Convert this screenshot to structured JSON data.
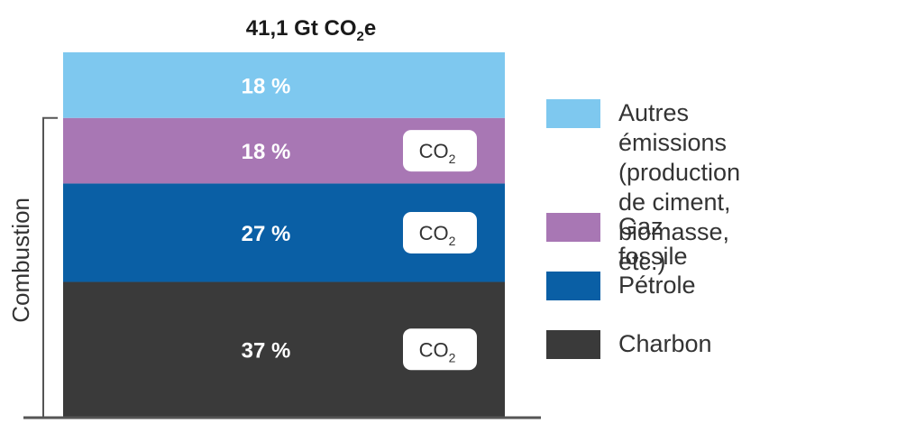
{
  "chart_data": {
    "type": "bar",
    "stacked": true,
    "title_main": "41,1 Gt CO",
    "title_sub": "2",
    "title_end": "e",
    "segments": [
      {
        "name": "Charbon",
        "value": 37,
        "label": "37 %",
        "color": "#3a3a3a",
        "badge": true
      },
      {
        "name": "Pétrole",
        "value": 27,
        "label": "27 %",
        "color": "#0a5fa5",
        "badge": true
      },
      {
        "name": "Gaz fossile",
        "value": 18,
        "label": "18 %",
        "color": "#a877b4",
        "badge": true
      },
      {
        "name": "Autres émissions\n(production de ciment,\nbiomasse, etc.)",
        "value": 18,
        "label": "18 %",
        "color": "#7ec8ef",
        "badge": false
      }
    ],
    "badge_main": "CO",
    "badge_sub": "2",
    "bracket_label": "Combustion",
    "legend_order": [
      "Autres émissions\n(production de ciment,\nbiomasse, etc.)",
      "Gaz fossile",
      "Pétrole",
      "Charbon"
    ]
  }
}
